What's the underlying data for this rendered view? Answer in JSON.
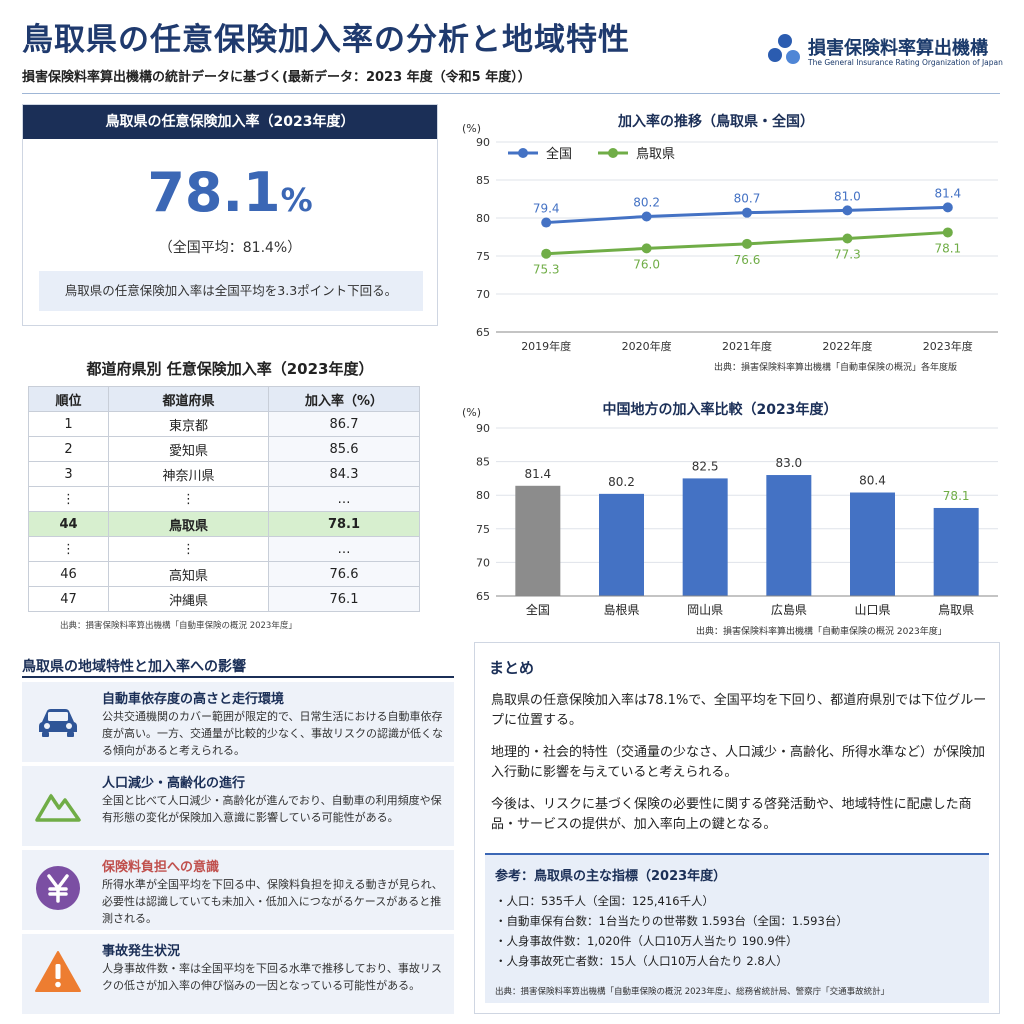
{
  "header": {
    "title": "鳥取県の任意保険加入率の分析と地域特性",
    "subtitle": "損害保険料率算出機構の統計データに基づく(最新データ：2023 年度（令和5 年度））",
    "org_name": "損害保険料率算出機構",
    "org_name_en": "The General Insurance Rating Organization of Japan"
  },
  "kpi": {
    "heading": "鳥取県の任意保険加入率（2023年度）",
    "value": "78.1",
    "unit": "%",
    "average": "（全国平均：81.4%）",
    "note": "鳥取県の任意保険加入率は全国平均を3.3ポイント下回る。"
  },
  "ranking": {
    "title": "都道府県別 任意保険加入率（2023年度）",
    "headers": [
      "順位",
      "都道府県",
      "加入率（%）"
    ],
    "rows": [
      {
        "rank": "1",
        "pref": "東京都",
        "rate": "86.7"
      },
      {
        "rank": "2",
        "pref": "愛知県",
        "rate": "85.6"
      },
      {
        "rank": "3",
        "pref": "神奈川県",
        "rate": "84.3"
      },
      {
        "rank": "⋮",
        "pref": "⋮",
        "rate": "…"
      },
      {
        "rank": "44",
        "pref": "鳥取県",
        "rate": "78.1"
      },
      {
        "rank": "⋮",
        "pref": "⋮",
        "rate": "…"
      },
      {
        "rank": "46",
        "pref": "高知県",
        "rate": "76.6"
      },
      {
        "rank": "47",
        "pref": "沖縄県",
        "rate": "76.1"
      }
    ],
    "source": "出典：損害保険料率算出機構「自動車保険の概況 2023年度」"
  },
  "chart_data": [
    {
      "type": "line",
      "title": "加入率の推移（鳥取県・全国）",
      "ylabel": "(%)",
      "x": [
        "2019年度",
        "2020年度",
        "2021年度",
        "2022年度",
        "2023年度"
      ],
      "ylim": [
        65,
        90
      ],
      "yticks": [
        65,
        70,
        75,
        80,
        85,
        90
      ],
      "series": [
        {
          "name": "全国",
          "values": [
            79.4,
            80.2,
            80.7,
            81.0,
            81.4
          ],
          "color": "#4472c4"
        },
        {
          "name": "鳥取県",
          "values": [
            75.3,
            76.0,
            76.6,
            77.3,
            78.1
          ],
          "color": "#70ad47"
        }
      ],
      "grid": true,
      "legend": "top-left",
      "source": "出典：損害保険料率算出機構「自動車保険の概況」各年度版"
    },
    {
      "type": "bar",
      "title": "中国地方の加入率比較（2023年度）",
      "ylabel": "(%)",
      "categories": [
        "全国",
        "島根県",
        "岡山県",
        "広島県",
        "山口県",
        "鳥取県"
      ],
      "values": [
        81.4,
        80.2,
        82.5,
        83.0,
        80.4,
        78.1
      ],
      "colors": [
        "#8c8c8c",
        "#4472c4",
        "#4472c4",
        "#4472c4",
        "#4472c4",
        "#4472c4"
      ],
      "label_colors": [
        "#333333",
        "#333333",
        "#333333",
        "#333333",
        "#333333",
        "#70ad47"
      ],
      "ylim": [
        65,
        90
      ],
      "yticks": [
        65,
        70,
        75,
        80,
        85,
        90
      ],
      "grid": true,
      "source": "出典：損害保険料率算出機構「自動車保険の概況 2023年度」"
    }
  ],
  "region": {
    "title": "鳥取県の地域特性と加入率への影響",
    "items": [
      {
        "icon": "car-icon",
        "title": "自動車依存度の高さと走行環境",
        "title_color": "#1b2f57",
        "body": "公共交通機関のカバー範囲が限定的で、日常生活における自動車依存度が高い。一方、交通量が比較的少なく、事故リスクの認識が低くなる傾向があると考えられる。"
      },
      {
        "icon": "mountain-icon",
        "title": "人口減少・高齢化の進行",
        "title_color": "#1b2f57",
        "body": "全国と比べて人口減少・高齢化が進んでおり、自動車の利用頻度や保有形態の変化が保険加入意識に影響している可能性がある。"
      },
      {
        "icon": "yen-icon",
        "title": "保険料負担への意識",
        "title_color": "#c0504d",
        "body": "所得水準が全国平均を下回る中、保険料負担を抑える動きが見られ、必要性は認識していても未加入・低加入につながるケースがあると推測される。"
      },
      {
        "icon": "warning-icon",
        "title": "事故発生状況",
        "title_color": "#1b2f57",
        "body": "人身事故件数・率は全国平均を下回る水準で推移しており、事故リスクの低さが加入率の伸び悩みの一因となっている可能性がある。"
      }
    ]
  },
  "summary": {
    "title": "まとめ",
    "paragraphs": [
      "鳥取県の任意保険加入率は78.1%で、全国平均を下回り、都道府県別では下位グループに位置する。",
      "地理的・社会的特性（交通量の少なさ、人口減少・高齢化、所得水準など）が保険加入行動に影響を与えていると考えられる。",
      "今後は、リスクに基づく保険の必要性に関する啓発活動や、地域特性に配慮した商品・サービスの提供が、加入率向上の鍵となる。"
    ],
    "reference": {
      "title": "参考：鳥取県の主な指標（2023年度）",
      "items": [
        "・人口：535千人（全国：125,416千人）",
        "・自動車保有台数：1台当たりの世帯数 1.593台（全国：1.593台）",
        "・人身事故件数：1,020件（人口10万人当たり 190.9件）",
        "・人身事故死亡者数：15人（人口10万人台たり 2.8人）"
      ],
      "source": "出典：損害保険料率算出機構「自動車保険の概況 2023年度」、総務省統計局、警察庁「交通事故統計」"
    }
  }
}
